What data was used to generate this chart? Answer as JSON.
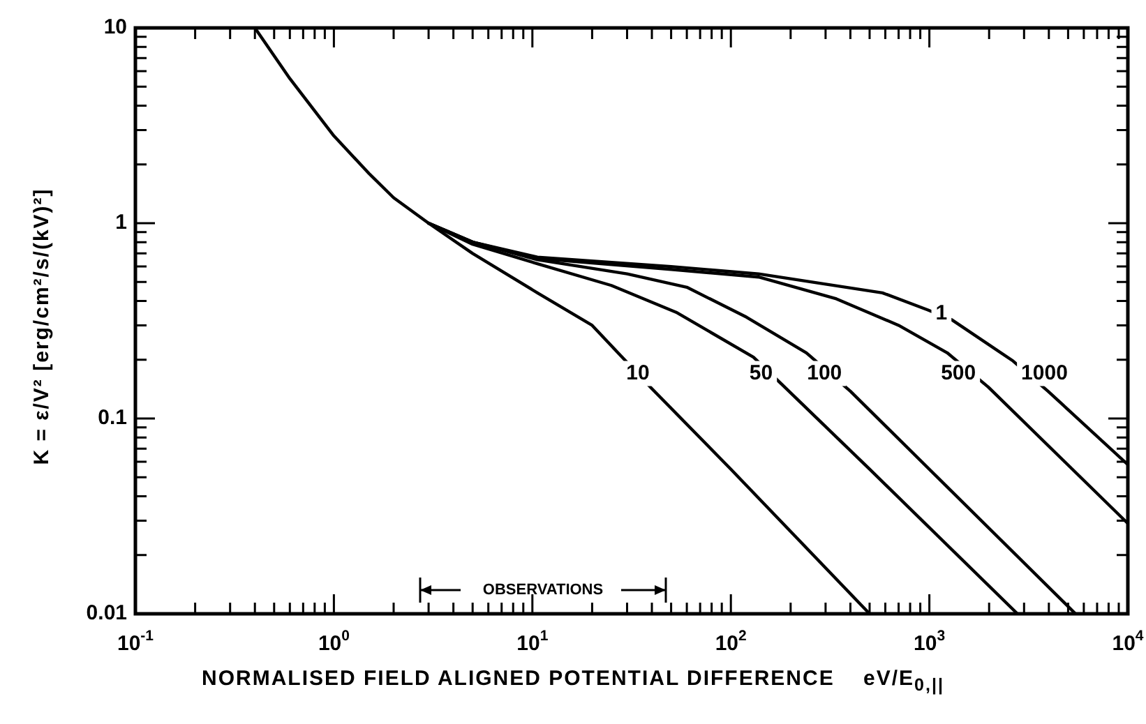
{
  "chart_data": {
    "type": "line",
    "xlabel": "NORMALISED FIELD ALIGNED POTENTIAL DIFFERENCE    eV/E$_{0,||}$",
    "ylabel": "K = ε/V² [erg/cm²/s/(kV)²]",
    "log": "xy",
    "grid": false,
    "legend": false,
    "marker": "none",
    "line_style": "solid",
    "xlim": [
      0.1,
      10000
    ],
    "ylim": [
      0.01,
      10
    ],
    "xticks": [
      {
        "value": 0.1,
        "label": "10$^{-1}$"
      },
      {
        "value": 0.2,
        "label": null
      },
      {
        "value": 0.3,
        "label": null
      },
      {
        "value": 0.4,
        "label": null
      },
      {
        "value": 0.5,
        "label": null
      },
      {
        "value": 0.6,
        "label": null
      },
      {
        "value": 0.7,
        "label": null
      },
      {
        "value": 0.8,
        "label": null
      },
      {
        "value": 0.9,
        "label": null
      },
      {
        "value": 1,
        "label": "10$^{0}$"
      },
      {
        "value": 2,
        "label": null
      },
      {
        "value": 3,
        "label": null
      },
      {
        "value": 4,
        "label": null
      },
      {
        "value": 5,
        "label": null
      },
      {
        "value": 6,
        "label": null
      },
      {
        "value": 7,
        "label": null
      },
      {
        "value": 8,
        "label": null
      },
      {
        "value": 9,
        "label": null
      },
      {
        "value": 10,
        "label": "10$^{1}$"
      },
      {
        "value": 20,
        "label": null
      },
      {
        "value": 30,
        "label": null
      },
      {
        "value": 40,
        "label": null
      },
      {
        "value": 50,
        "label": null
      },
      {
        "value": 60,
        "label": null
      },
      {
        "value": 70,
        "label": null
      },
      {
        "value": 80,
        "label": null
      },
      {
        "value": 90,
        "label": null
      },
      {
        "value": 100,
        "label": "10$^{2}$"
      },
      {
        "value": 200,
        "label": null
      },
      {
        "value": 300,
        "label": null
      },
      {
        "value": 400,
        "label": null
      },
      {
        "value": 500,
        "label": null
      },
      {
        "value": 600,
        "label": null
      },
      {
        "value": 700,
        "label": null
      },
      {
        "value": 800,
        "label": null
      },
      {
        "value": 900,
        "label": null
      },
      {
        "value": 1000,
        "label": "10$^{3}$"
      },
      {
        "value": 2000,
        "label": null
      },
      {
        "value": 3000,
        "label": null
      },
      {
        "value": 4000,
        "label": null
      },
      {
        "value": 5000,
        "label": null
      },
      {
        "value": 6000,
        "label": null
      },
      {
        "value": 7000,
        "label": null
      },
      {
        "value": 8000,
        "label": null
      },
      {
        "value": 9000,
        "label": null
      },
      {
        "value": 10000,
        "label": "10$^{4}$"
      }
    ],
    "yticks": [
      {
        "value": 0.01,
        "label": "0.01"
      },
      {
        "value": 0.02,
        "label": null
      },
      {
        "value": 0.03,
        "label": null
      },
      {
        "value": 0.04,
        "label": null
      },
      {
        "value": 0.05,
        "label": null
      },
      {
        "value": 0.06,
        "label": null
      },
      {
        "value": 0.07,
        "label": null
      },
      {
        "value": 0.08,
        "label": null
      },
      {
        "value": 0.09,
        "label": null
      },
      0.1,
      {
        "value": 0.2,
        "label": null
      },
      {
        "value": 0.3,
        "label": null
      },
      {
        "value": 0.4,
        "label": null
      },
      {
        "value": 0.5,
        "label": null
      },
      {
        "value": 0.6,
        "label": null
      },
      {
        "value": 0.7,
        "label": null
      },
      {
        "value": 0.8,
        "label": null
      },
      {
        "value": 0.9,
        "label": null
      },
      1,
      {
        "value": 2,
        "label": null
      },
      {
        "value": 3,
        "label": null
      },
      {
        "value": 4,
        "label": null
      },
      {
        "value": 5,
        "label": null
      },
      {
        "value": 6,
        "label": null
      },
      {
        "value": 7,
        "label": null
      },
      {
        "value": 8,
        "label": null
      },
      {
        "value": 9,
        "label": null
      },
      10
    ],
    "series": [
      {
        "color": "#000000",
        "x": [
          0.4,
          0.6,
          1,
          1.5,
          2,
          3,
          5,
          10.6,
          20,
          40,
          100,
          500
        ],
        "values": [
          10,
          5.5,
          2.8,
          1.8,
          1.35,
          1.0,
          0.7,
          0.44,
          0.3,
          0.142,
          0.055,
          0.01
        ]
      },
      {
        "color": "#000000",
        "x": [
          3,
          5,
          10.6,
          25,
          53,
          130,
          180,
          500,
          2780
        ],
        "values": [
          1.0,
          0.78,
          0.62,
          0.48,
          0.35,
          0.206,
          0.15,
          0.055,
          0.01
        ]
      },
      {
        "color": "#000000",
        "x": [
          3,
          5,
          10.6,
          30,
          60,
          120,
          240,
          400,
          5450
        ],
        "values": [
          1.0,
          0.8,
          0.65,
          0.55,
          0.47,
          0.33,
          0.217,
          0.138,
          0.01
        ]
      },
      {
        "color": "#000000",
        "x": [
          3,
          5,
          10.6,
          50,
          138,
          340,
          700,
          1230,
          1980,
          10000
        ],
        "values": [
          1.0,
          0.8,
          0.66,
          0.58,
          0.53,
          0.41,
          0.3,
          0.217,
          0.145,
          0.029
        ]
      },
      {
        "color": "#000000",
        "x": [
          3,
          5,
          10.6,
          50,
          138,
          580,
          980,
          1300,
          2640,
          3960,
          10000
        ],
        "values": [
          1.0,
          0.8,
          0.67,
          0.6,
          0.55,
          0.44,
          0.36,
          0.32,
          0.197,
          0.138,
          0.058
        ]
      }
    ],
    "annotations": [
      {
        "text": "1",
        "x": 1150,
        "y": 0.345
      },
      {
        "text": "10",
        "x": 34,
        "y": 0.17
      },
      {
        "text": "50",
        "x": 142,
        "y": 0.17
      },
      {
        "text": "100",
        "x": 296,
        "y": 0.17
      },
      {
        "text": "500",
        "x": 1400,
        "y": 0.17
      },
      {
        "text": "1000",
        "x": 3800,
        "y": 0.17
      },
      "OBSERVATIONS"
    ]
  }
}
